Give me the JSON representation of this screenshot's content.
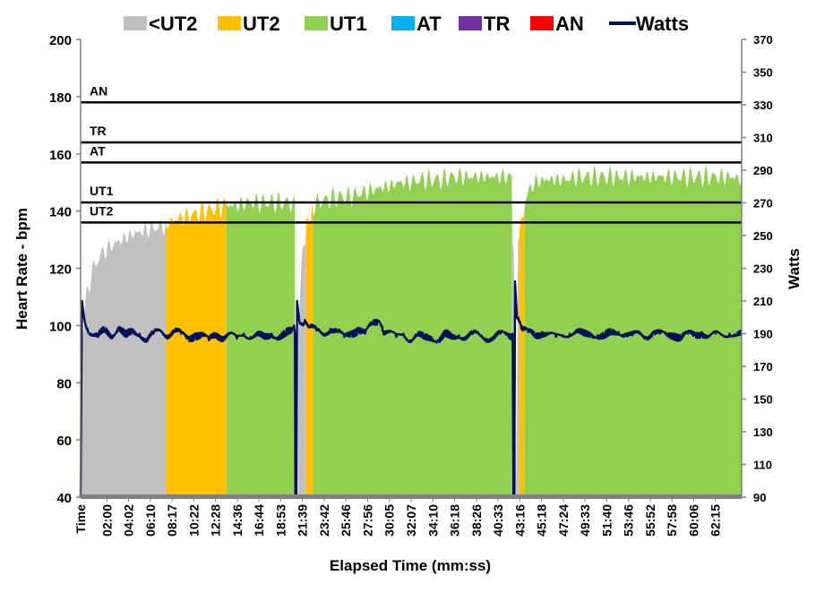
{
  "chart_data": {
    "type": "area",
    "title": "",
    "xlabel": "Elapsed Time (mm:ss)",
    "ylabel": "Heart Rate - bpm",
    "y2label": "Watts",
    "x_first_tick": "Time",
    "xlim_seconds": [
      0,
      3810
    ],
    "ylim": [
      40,
      200
    ],
    "y2lim": [
      90,
      370
    ],
    "yticks": [
      40,
      60,
      80,
      100,
      120,
      140,
      160,
      180,
      200
    ],
    "y2ticks": [
      90,
      110,
      130,
      150,
      170,
      190,
      210,
      230,
      250,
      270,
      290,
      310,
      330,
      350,
      370
    ],
    "xticks": [
      "02:00",
      "04:02",
      "06:10",
      "08:17",
      "10:22",
      "12:28",
      "14:36",
      "16:44",
      "18:53",
      "21:39",
      "23:42",
      "25:46",
      "27:56",
      "30:05",
      "32:07",
      "34:10",
      "36:18",
      "38:26",
      "40:33",
      "43:16",
      "45:18",
      "47:24",
      "49:33",
      "51:40",
      "53:46",
      "55:52",
      "57:58",
      "60:06",
      "62:15"
    ],
    "legend": [
      {
        "name": "<UT2",
        "color": "#c0c0c0",
        "kind": "area"
      },
      {
        "name": "UT2",
        "color": "#ffc000",
        "kind": "area"
      },
      {
        "name": "UT1",
        "color": "#92d050",
        "kind": "area"
      },
      {
        "name": "AT",
        "color": "#00b0f0",
        "kind": "area"
      },
      {
        "name": "TR",
        "color": "#7030a0",
        "kind": "area"
      },
      {
        "name": "AN",
        "color": "#ff0000",
        "kind": "area"
      },
      {
        "name": "Watts",
        "color": "#00105a",
        "kind": "line"
      }
    ],
    "zone_thresholds": [
      {
        "label": "AN",
        "hr": 178
      },
      {
        "label": "TR",
        "hr": 164
      },
      {
        "label": "AT",
        "hr": 157
      },
      {
        "label": "UT1",
        "hr": 143
      },
      {
        "label": "UT2",
        "hr": 136
      }
    ],
    "heart_rate_points": [
      [
        0,
        40
      ],
      [
        10,
        95
      ],
      [
        30,
        108
      ],
      [
        60,
        118
      ],
      [
        90,
        122
      ],
      [
        120,
        125
      ],
      [
        180,
        128
      ],
      [
        240,
        130
      ],
      [
        300,
        132
      ],
      [
        360,
        133
      ],
      [
        420,
        134
      ],
      [
        480,
        135
      ],
      [
        540,
        137
      ],
      [
        600,
        138
      ],
      [
        660,
        139
      ],
      [
        720,
        140
      ],
      [
        780,
        141
      ],
      [
        840,
        142
      ],
      [
        900,
        142
      ],
      [
        960,
        143
      ],
      [
        1020,
        143
      ],
      [
        1080,
        143
      ],
      [
        1140,
        143
      ],
      [
        1200,
        143
      ],
      [
        1235,
        142
      ],
      [
        1242,
        40
      ],
      [
        1250,
        40
      ],
      [
        1255,
        100
      ],
      [
        1270,
        118
      ],
      [
        1300,
        135
      ],
      [
        1330,
        140
      ],
      [
        1360,
        143
      ],
      [
        1420,
        144
      ],
      [
        1480,
        145
      ],
      [
        1540,
        145
      ],
      [
        1600,
        146
      ],
      [
        1660,
        147
      ],
      [
        1720,
        148
      ],
      [
        1780,
        149
      ],
      [
        1840,
        150
      ],
      [
        1900,
        150
      ],
      [
        1960,
        151
      ],
      [
        2020,
        151
      ],
      [
        2080,
        151
      ],
      [
        2140,
        152
      ],
      [
        2200,
        152
      ],
      [
        2260,
        152
      ],
      [
        2320,
        152
      ],
      [
        2380,
        152
      ],
      [
        2440,
        152
      ],
      [
        2485,
        152
      ],
      [
        2492,
        130
      ],
      [
        2500,
        125
      ],
      [
        2506,
        40
      ],
      [
        2512,
        40
      ],
      [
        2520,
        128
      ],
      [
        2540,
        135
      ],
      [
        2560,
        143
      ],
      [
        2590,
        148
      ],
      [
        2620,
        150
      ],
      [
        2680,
        151
      ],
      [
        2740,
        151
      ],
      [
        2800,
        151
      ],
      [
        2860,
        152
      ],
      [
        2920,
        152
      ],
      [
        2980,
        152
      ],
      [
        3040,
        152
      ],
      [
        3100,
        152
      ],
      [
        3160,
        152
      ],
      [
        3220,
        152
      ],
      [
        3280,
        152
      ],
      [
        3340,
        152
      ],
      [
        3400,
        152
      ],
      [
        3460,
        152
      ],
      [
        3520,
        152
      ],
      [
        3580,
        152
      ],
      [
        3640,
        152
      ],
      [
        3700,
        152
      ],
      [
        3760,
        152
      ],
      [
        3810,
        151
      ]
    ],
    "zone_segments": [
      {
        "zone": "<UT2",
        "start": 0,
        "end": 490
      },
      {
        "zone": "UT2",
        "start": 490,
        "end": 840
      },
      {
        "zone": "UT1",
        "start": 840,
        "end": 1235
      },
      {
        "zone": "<UT2",
        "start": 1255,
        "end": 1300
      },
      {
        "zone": "UT2",
        "start": 1300,
        "end": 1340
      },
      {
        "zone": "UT1",
        "start": 1340,
        "end": 2485
      },
      {
        "zone": "<UT2",
        "start": 2485,
        "end": 2530
      },
      {
        "zone": "UT2",
        "start": 2530,
        "end": 2560
      },
      {
        "zone": "UT1",
        "start": 2560,
        "end": 3810
      }
    ],
    "watts_points": [
      [
        0,
        90
      ],
      [
        8,
        210
      ],
      [
        20,
        200
      ],
      [
        40,
        193
      ],
      [
        60,
        190
      ],
      [
        100,
        188
      ],
      [
        140,
        192
      ],
      [
        180,
        189
      ],
      [
        220,
        194
      ],
      [
        260,
        188
      ],
      [
        300,
        191
      ],
      [
        340,
        190
      ],
      [
        380,
        186
      ],
      [
        420,
        190
      ],
      [
        460,
        192
      ],
      [
        500,
        189
      ],
      [
        540,
        192
      ],
      [
        580,
        190
      ],
      [
        620,
        187
      ],
      [
        660,
        190
      ],
      [
        700,
        189
      ],
      [
        740,
        186
      ],
      [
        780,
        190
      ],
      [
        820,
        188
      ],
      [
        860,
        190
      ],
      [
        900,
        187
      ],
      [
        940,
        190
      ],
      [
        980,
        188
      ],
      [
        1020,
        189
      ],
      [
        1060,
        187
      ],
      [
        1100,
        190
      ],
      [
        1140,
        188
      ],
      [
        1180,
        189
      ],
      [
        1215,
        191
      ],
      [
        1230,
        195
      ],
      [
        1235,
        190
      ],
      [
        1238,
        90
      ],
      [
        1244,
        90
      ],
      [
        1248,
        210
      ],
      [
        1260,
        198
      ],
      [
        1290,
        197
      ],
      [
        1320,
        194
      ],
      [
        1360,
        192
      ],
      [
        1400,
        190
      ],
      [
        1440,
        193
      ],
      [
        1480,
        191
      ],
      [
        1520,
        188
      ],
      [
        1560,
        191
      ],
      [
        1600,
        193
      ],
      [
        1640,
        190
      ],
      [
        1680,
        196
      ],
      [
        1710,
        198
      ],
      [
        1740,
        192
      ],
      [
        1780,
        191
      ],
      [
        1820,
        188
      ],
      [
        1860,
        190
      ],
      [
        1900,
        186
      ],
      [
        1940,
        189
      ],
      [
        1980,
        187
      ],
      [
        2020,
        188
      ],
      [
        2060,
        186
      ],
      [
        2100,
        189
      ],
      [
        2140,
        187
      ],
      [
        2180,
        189
      ],
      [
        2220,
        188
      ],
      [
        2260,
        190
      ],
      [
        2300,
        189
      ],
      [
        2340,
        187
      ],
      [
        2380,
        188
      ],
      [
        2420,
        190
      ],
      [
        2460,
        189
      ],
      [
        2485,
        189
      ],
      [
        2490,
        190
      ],
      [
        2494,
        90
      ],
      [
        2500,
        90
      ],
      [
        2504,
        222
      ],
      [
        2515,
        200
      ],
      [
        2540,
        193
      ],
      [
        2580,
        191
      ],
      [
        2620,
        189
      ],
      [
        2660,
        191
      ],
      [
        2700,
        190
      ],
      [
        2740,
        188
      ],
      [
        2780,
        189
      ],
      [
        2820,
        190
      ],
      [
        2860,
        191
      ],
      [
        2900,
        189
      ],
      [
        2940,
        190
      ],
      [
        2980,
        189
      ],
      [
        3020,
        188
      ],
      [
        3060,
        190
      ],
      [
        3100,
        191
      ],
      [
        3140,
        190
      ],
      [
        3180,
        189
      ],
      [
        3220,
        190
      ],
      [
        3260,
        188
      ],
      [
        3300,
        191
      ],
      [
        3340,
        190
      ],
      [
        3380,
        189
      ],
      [
        3420,
        190
      ],
      [
        3460,
        188
      ],
      [
        3500,
        190
      ],
      [
        3540,
        189
      ],
      [
        3580,
        191
      ],
      [
        3620,
        188
      ],
      [
        3660,
        190
      ],
      [
        3700,
        189
      ],
      [
        3740,
        190
      ],
      [
        3780,
        189
      ],
      [
        3810,
        189
      ]
    ]
  }
}
